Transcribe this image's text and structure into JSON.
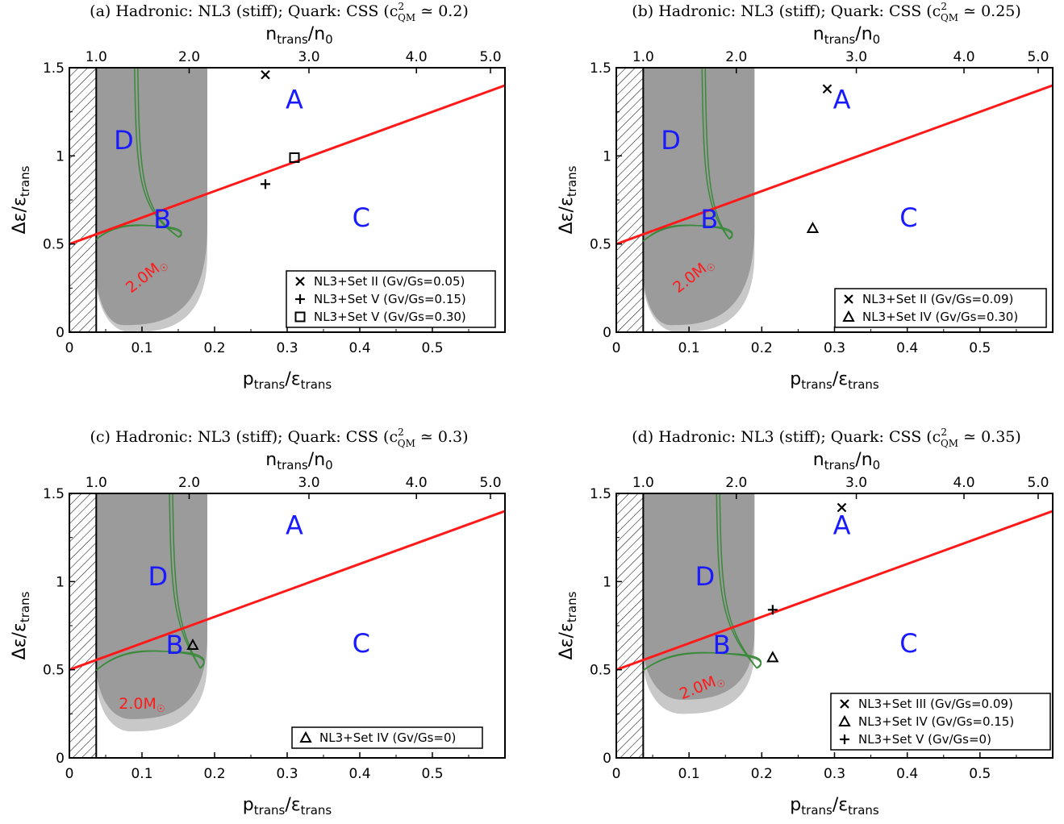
{
  "chart_data": [
    {
      "type": "scatter",
      "title": "(a) Hadronic: NL3 (stiff); Quark: CSS (c²QM ≃ 0.2)",
      "xlabel": "ptrans/εtrans",
      "ylabel": "Δε/εtrans",
      "top_xlabel": "ntrans/n0",
      "xlim": [
        0,
        0.6
      ],
      "ylim": [
        0,
        1.5
      ],
      "x_ticks": [
        "0",
        "0.1",
        "0.2",
        "0.3",
        "0.4",
        "0.5"
      ],
      "y_ticks": [
        "0",
        "0.5",
        "1",
        "1.5"
      ],
      "top_ticks": [
        {
          "label": "1.0",
          "x": 0.037
        },
        {
          "label": "2.0",
          "x": 0.165
        },
        {
          "label": "3.0",
          "x": 0.33
        },
        {
          "label": "4.0",
          "x": 0.478
        },
        {
          "label": "5.0",
          "x": 0.58
        }
      ],
      "hatch_xmax": 0.037,
      "critical_line": {
        "x": [
          0,
          0.6
        ],
        "y": [
          0.5,
          1.4
        ]
      },
      "regions": [
        {
          "label": "A",
          "x": 0.31,
          "y": 1.31
        },
        {
          "label": "B",
          "x": 0.128,
          "y": 0.63
        },
        {
          "label": "C",
          "x": 0.402,
          "y": 0.64
        },
        {
          "label": "D",
          "x": 0.075,
          "y": 1.08
        }
      ],
      "light_band": {
        "x_left": 0.037,
        "x_right": 0.19,
        "x_min_point": 0.085,
        "y_min": 0.0,
        "corner_y": 0.45
      },
      "dark_band": {
        "x_left": 0.037,
        "x_right": 0.19,
        "x_min_point": 0.075,
        "y_min": 0.04,
        "corner_y": 0.6
      },
      "mass_label": {
        "text": "2.0M☉",
        "x": 0.11,
        "y": 0.3,
        "angle": -38
      },
      "green_cusp": {
        "x_left": 0.037,
        "x_right": 0.15,
        "x_top": 0.092,
        "y_bottom": 0.54,
        "y_curve_max": 0.6,
        "y_join": 0.68
      },
      "points": [
        {
          "marker": "x",
          "x": 0.27,
          "y": 1.46,
          "label": "NL3+Set II (Gv/Gs=0.05)"
        },
        {
          "marker": "+",
          "x": 0.27,
          "y": 0.84,
          "label": "NL3+Set V (Gv/Gs=0.15)"
        },
        {
          "marker": "square",
          "x": 0.31,
          "y": 0.99,
          "label": "NL3+Set V (Gv/Gs=0.30)"
        }
      ]
    },
    {
      "type": "scatter",
      "title": "(b) Hadronic: NL3 (stiff); Quark: CSS (c²QM ≃ 0.25)",
      "xlabel": "ptrans/εtrans",
      "ylabel": "Δε/εtrans",
      "top_xlabel": "ntrans/n0",
      "xlim": [
        0,
        0.6
      ],
      "ylim": [
        0,
        1.5
      ],
      "x_ticks": [
        "0",
        "0.1",
        "0.2",
        "0.3",
        "0.4",
        "0.5"
      ],
      "y_ticks": [
        "0",
        "0.5",
        "1",
        "1.5"
      ],
      "top_ticks": [
        {
          "label": "1.0",
          "x": 0.037
        },
        {
          "label": "2.0",
          "x": 0.165
        },
        {
          "label": "3.0",
          "x": 0.33
        },
        {
          "label": "4.0",
          "x": 0.478
        },
        {
          "label": "5.0",
          "x": 0.58
        }
      ],
      "hatch_xmax": 0.037,
      "critical_line": {
        "x": [
          0,
          0.6
        ],
        "y": [
          0.5,
          1.4
        ]
      },
      "regions": [
        {
          "label": "A",
          "x": 0.31,
          "y": 1.31
        },
        {
          "label": "B",
          "x": 0.128,
          "y": 0.63
        },
        {
          "label": "C",
          "x": 0.402,
          "y": 0.64
        },
        {
          "label": "D",
          "x": 0.075,
          "y": 1.08
        }
      ],
      "light_band": {
        "x_left": 0.037,
        "x_right": 0.19,
        "x_min_point": 0.085,
        "y_min": 0.0,
        "corner_y": 0.45
      },
      "dark_band": {
        "x_left": 0.037,
        "x_right": 0.19,
        "x_min_point": 0.075,
        "y_min": 0.04,
        "corner_y": 0.6
      },
      "mass_label": {
        "text": "2.0M☉",
        "x": 0.11,
        "y": 0.3,
        "angle": -38
      },
      "green_cusp": {
        "x_left": 0.037,
        "x_right": 0.155,
        "x_top": 0.12,
        "y_bottom": 0.53,
        "y_curve_max": 0.6,
        "y_join": 0.68
      },
      "points": [
        {
          "marker": "x",
          "x": 0.29,
          "y": 1.38,
          "label": "NL3+Set II (Gv/Gs=0.09)"
        },
        {
          "marker": "triangle",
          "x": 0.27,
          "y": 0.59,
          "label": "NL3+Set IV (Gv/Gs=0.30)"
        }
      ]
    },
    {
      "type": "scatter",
      "title": "(c) Hadronic: NL3 (stiff); Quark: CSS (c²QM ≃ 0.3)",
      "xlabel": "ptrans/εtrans",
      "ylabel": "Δε/εtrans",
      "top_xlabel": "ntrans/n0",
      "xlim": [
        0,
        0.6
      ],
      "ylim": [
        0,
        1.5
      ],
      "x_ticks": [
        "0",
        "0.1",
        "0.2",
        "0.3",
        "0.4",
        "0.5"
      ],
      "y_ticks": [
        "0",
        "0.5",
        "1",
        "1.5"
      ],
      "top_ticks": [
        {
          "label": "1.0",
          "x": 0.037
        },
        {
          "label": "2.0",
          "x": 0.165
        },
        {
          "label": "3.0",
          "x": 0.33
        },
        {
          "label": "4.0",
          "x": 0.478
        },
        {
          "label": "5.0",
          "x": 0.58
        }
      ],
      "hatch_xmax": 0.037,
      "critical_line": {
        "x": [
          0,
          0.6
        ],
        "y": [
          0.5,
          1.4
        ]
      },
      "regions": [
        {
          "label": "A",
          "x": 0.31,
          "y": 1.31
        },
        {
          "label": "B",
          "x": 0.145,
          "y": 0.63
        },
        {
          "label": "C",
          "x": 0.402,
          "y": 0.64
        },
        {
          "label": "D",
          "x": 0.122,
          "y": 1.02
        }
      ],
      "light_band": {
        "x_left": 0.037,
        "x_right": 0.19,
        "x_min_point": 0.085,
        "y_min": 0.15,
        "corner_y": 0.55
      },
      "dark_band": {
        "x_left": 0.037,
        "x_right": 0.19,
        "x_min_point": 0.085,
        "y_min": 0.22,
        "corner_y": 0.7
      },
      "mass_label": {
        "text": "2.0M☉",
        "x": 0.1,
        "y": 0.28,
        "angle": 0
      },
      "green_cusp": {
        "x_left": 0.037,
        "x_right": 0.18,
        "x_top": 0.14,
        "y_bottom": 0.51,
        "y_curve_max": 0.6,
        "y_join": 0.73
      },
      "points": [
        {
          "marker": "triangle",
          "x": 0.17,
          "y": 0.64,
          "label": "NL3+Set IV (Gv/Gs=0)"
        }
      ]
    },
    {
      "type": "scatter",
      "title": "(d) Hadronic: NL3 (stiff); Quark: CSS (c²QM ≃ 0.35)",
      "xlabel": "ptrans/εtrans",
      "ylabel": "Δε/εtrans",
      "top_xlabel": "ntrans/n0",
      "xlim": [
        0,
        0.6
      ],
      "ylim": [
        0,
        1.5
      ],
      "x_ticks": [
        "0",
        "0.1",
        "0.2",
        "0.3",
        "0.4",
        "0.5"
      ],
      "y_ticks": [
        "0",
        "0.5",
        "1",
        "1.5"
      ],
      "top_ticks": [
        {
          "label": "1.0",
          "x": 0.037
        },
        {
          "label": "2.0",
          "x": 0.165
        },
        {
          "label": "3.0",
          "x": 0.33
        },
        {
          "label": "4.0",
          "x": 0.478
        },
        {
          "label": "5.0",
          "x": 0.58
        }
      ],
      "hatch_xmax": 0.037,
      "critical_line": {
        "x": [
          0,
          0.6
        ],
        "y": [
          0.5,
          1.4
        ]
      },
      "regions": [
        {
          "label": "A",
          "x": 0.31,
          "y": 1.31
        },
        {
          "label": "B",
          "x": 0.145,
          "y": 0.63
        },
        {
          "label": "C",
          "x": 0.402,
          "y": 0.64
        },
        {
          "label": "D",
          "x": 0.122,
          "y": 1.02
        }
      ],
      "light_band": {
        "x_left": 0.037,
        "x_right": 0.19,
        "x_min_point": 0.09,
        "y_min": 0.25,
        "corner_y": 0.62
      },
      "dark_band": {
        "x_left": 0.037,
        "x_right": 0.19,
        "x_min_point": 0.09,
        "y_min": 0.33,
        "corner_y": 0.72
      },
      "mass_label": {
        "text": "2.0M☉",
        "x": 0.12,
        "y": 0.38,
        "angle": -22
      },
      "green_cusp": {
        "x_left": 0.037,
        "x_right": 0.193,
        "x_top": 0.14,
        "y_bottom": 0.51,
        "y_curve_max": 0.59,
        "y_join": 0.73
      },
      "points": [
        {
          "marker": "x",
          "x": 0.31,
          "y": 1.42,
          "label": "NL3+Set III (Gv/Gs=0.09)"
        },
        {
          "marker": "triangle",
          "x": 0.215,
          "y": 0.57,
          "label": "NL3+Set IV (Gv/Gs=0.15)"
        },
        {
          "marker": "+",
          "x": 0.215,
          "y": 0.84,
          "label": "NL3+Set V (Gv/Gs=0)"
        }
      ]
    }
  ],
  "colors": {
    "critical_line": "#ff1a1a",
    "region_label": "#1a1aff",
    "mass_label": "#ff1a1a",
    "light_band": "#c8c8c8",
    "dark_band": "#9b9b9b",
    "green_curve": "#3b8a3b"
  }
}
